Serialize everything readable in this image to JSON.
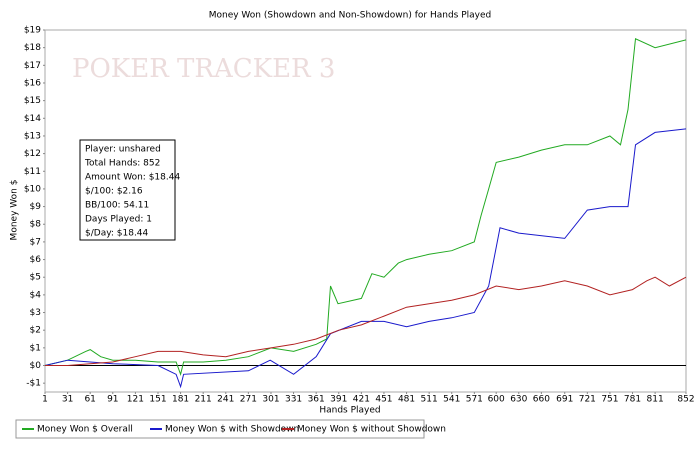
{
  "chart_data": {
    "type": "line",
    "title": "Money Won (Showdown and Non-Showdown) for Hands Played",
    "x_label": "Hands Played",
    "y_label": "Money Won $",
    "watermark": "POKER TRACKER 3",
    "annotations": [
      "Player: unshared",
      "Total Hands: 852",
      "Amount Won: $18.44",
      "$/100: $2.16",
      "BB/100: 54.11",
      "Days Played: 1",
      "$/Day: $18.44"
    ],
    "xlim": [
      1,
      852
    ],
    "xticks": [
      1,
      31,
      61,
      91,
      121,
      151,
      181,
      211,
      241,
      271,
      301,
      331,
      361,
      391,
      421,
      451,
      481,
      511,
      541,
      571,
      600,
      630,
      660,
      691,
      721,
      751,
      781,
      811,
      852
    ],
    "ylim": [
      -1.5,
      19
    ],
    "yticks": [
      {
        "value": -1,
        "label": "-$1"
      },
      {
        "value": 0,
        "label": "$0"
      },
      {
        "value": 1,
        "label": "$1"
      },
      {
        "value": 2,
        "label": "$2"
      },
      {
        "value": 3,
        "label": "$3"
      },
      {
        "value": 4,
        "label": "$4"
      },
      {
        "value": 5,
        "label": "$5"
      },
      {
        "value": 6,
        "label": "$6"
      },
      {
        "value": 7,
        "label": "$7"
      },
      {
        "value": 8,
        "label": "$8"
      },
      {
        "value": 9,
        "label": "$9"
      },
      {
        "value": 10,
        "label": "$10"
      },
      {
        "value": 11,
        "label": "$11"
      },
      {
        "value": 12,
        "label": "$12"
      },
      {
        "value": 13,
        "label": "$13"
      },
      {
        "value": 14,
        "label": "$14"
      },
      {
        "value": 15,
        "label": "$15"
      },
      {
        "value": 16,
        "label": "$16"
      },
      {
        "value": 17,
        "label": "$17"
      },
      {
        "value": 18,
        "label": "$18"
      },
      {
        "value": 19,
        "label": "$19"
      }
    ],
    "legend": "bottom",
    "series": [
      {
        "name": "Money Won $ Overall",
        "color": "#22aa22",
        "x": [
          1,
          31,
          55,
          61,
          75,
          91,
          121,
          151,
          175,
          181,
          185,
          211,
          241,
          271,
          301,
          331,
          361,
          375,
          380,
          390,
          421,
          435,
          451,
          470,
          481,
          511,
          541,
          571,
          580,
          590,
          600,
          630,
          660,
          691,
          721,
          751,
          765,
          775,
          785,
          811,
          852
        ],
        "values": [
          0,
          0.3,
          0.8,
          0.9,
          0.5,
          0.3,
          0.3,
          0.2,
          0.2,
          -0.5,
          0.2,
          0.2,
          0.3,
          0.5,
          1.0,
          0.8,
          1.2,
          1.5,
          4.5,
          3.5,
          3.8,
          5.2,
          5.0,
          5.8,
          6.0,
          6.3,
          6.5,
          7.0,
          8.5,
          10,
          11.5,
          11.8,
          12.2,
          12.5,
          12.5,
          13.0,
          12.5,
          14.5,
          18.5,
          18.0,
          18.44
        ]
      },
      {
        "name": "Money Won $ with Showdown",
        "color": "#1a1acc",
        "x": [
          1,
          31,
          91,
          151,
          175,
          181,
          185,
          271,
          300,
          331,
          361,
          380,
          421,
          451,
          481,
          511,
          541,
          571,
          590,
          605,
          630,
          691,
          721,
          751,
          775,
          785,
          811,
          852
        ],
        "values": [
          0,
          0.3,
          0.1,
          0.0,
          -0.5,
          -1.2,
          -0.5,
          -0.3,
          0.3,
          -0.5,
          0.5,
          1.8,
          2.5,
          2.5,
          2.2,
          2.5,
          2.7,
          3.0,
          4.5,
          7.8,
          7.5,
          7.2,
          8.8,
          9.0,
          9.0,
          12.5,
          13.2,
          13.4
        ]
      },
      {
        "name": "Money Won $ without Showdown",
        "color": "#b22222",
        "x": [
          1,
          31,
          91,
          121,
          151,
          181,
          211,
          241,
          271,
          301,
          331,
          361,
          391,
          421,
          451,
          481,
          511,
          541,
          571,
          600,
          630,
          660,
          691,
          721,
          751,
          781,
          800,
          811,
          830,
          852
        ],
        "values": [
          0,
          0.0,
          0.2,
          0.5,
          0.8,
          0.8,
          0.6,
          0.5,
          0.8,
          1.0,
          1.2,
          1.5,
          2.0,
          2.3,
          2.8,
          3.3,
          3.5,
          3.7,
          4.0,
          4.5,
          4.3,
          4.5,
          4.8,
          4.5,
          4.0,
          4.3,
          4.8,
          5.0,
          4.5,
          5.0
        ]
      }
    ]
  }
}
